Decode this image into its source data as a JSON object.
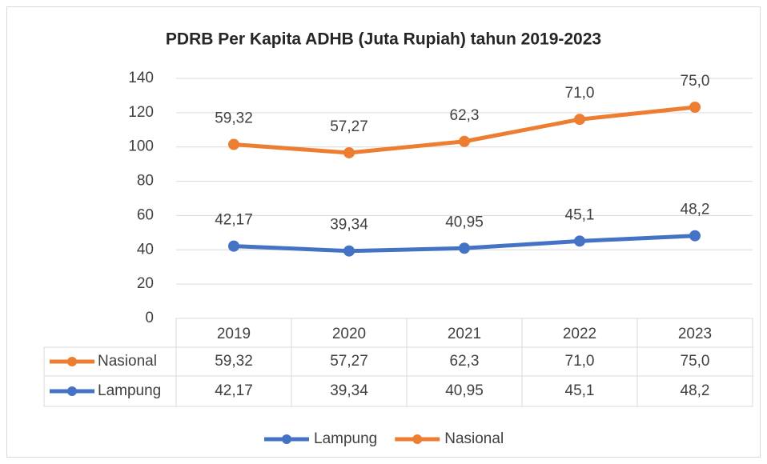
{
  "chart_data": {
    "type": "line",
    "stacked": true,
    "title": "PDRB Per Kapita ADHB (Juta Rupiah) tahun 2019-2023",
    "categories": [
      "2019",
      "2020",
      "2021",
      "2022",
      "2023"
    ],
    "series": [
      {
        "name": "Lampung",
        "color": "#4472c4",
        "values": [
          42.17,
          39.34,
          40.95,
          45.1,
          48.2
        ],
        "value_labels": [
          "42,17",
          "39,34",
          "40,95",
          "45,1",
          "48,2"
        ]
      },
      {
        "name": "Nasional",
        "color": "#ed7d31",
        "values": [
          59.32,
          57.27,
          62.3,
          71.0,
          75.0
        ],
        "value_labels": [
          "59,32",
          "57,27",
          "62,3",
          "71,0",
          "75,0"
        ]
      }
    ],
    "ylim": [
      0,
      140
    ],
    "yticks": [
      0,
      20,
      40,
      60,
      80,
      100,
      120,
      140
    ],
    "grid": true,
    "legend": "bottom",
    "data_table": true
  }
}
